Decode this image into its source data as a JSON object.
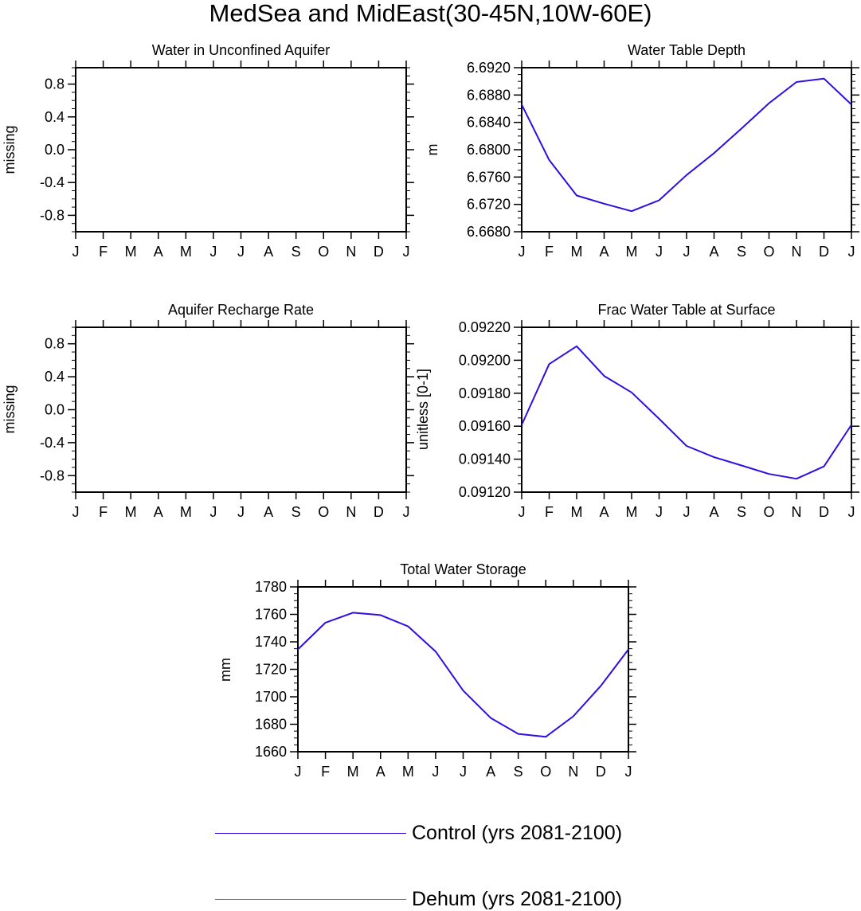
{
  "figure": {
    "title": "MedSea and MidEast(30-45N,10W-60E)"
  },
  "chart_data": [
    {
      "type": "line",
      "title": "Water in Unconfined Aquifer",
      "ylabel": "missing",
      "xlabel": "",
      "categories": [
        "J",
        "F",
        "M",
        "A",
        "M",
        "J",
        "J",
        "A",
        "S",
        "O",
        "N",
        "D",
        "J"
      ],
      "ylim": [
        -1.0,
        1.0
      ],
      "yticks": [
        -0.8,
        -0.4,
        0.0,
        0.4,
        0.8
      ],
      "ytick_labels": [
        "-0.8",
        "-0.4",
        "0.0",
        "0.4",
        "0.8"
      ],
      "minor_step": 0.1,
      "series": []
    },
    {
      "type": "line",
      "title": "Water Table Depth",
      "ylabel": "m",
      "xlabel": "",
      "categories": [
        "J",
        "F",
        "M",
        "A",
        "M",
        "J",
        "J",
        "A",
        "S",
        "O",
        "N",
        "D",
        "J"
      ],
      "ylim": [
        6.668,
        6.692
      ],
      "yticks": [
        6.668,
        6.672,
        6.676,
        6.68,
        6.684,
        6.688,
        6.692
      ],
      "ytick_labels": [
        "6.6680",
        "6.6720",
        "6.6760",
        "6.6800",
        "6.6840",
        "6.6880",
        "6.6920"
      ],
      "minor_step": 0.001,
      "series": [
        {
          "color": "#2d0fdf",
          "values": [
            6.6866,
            6.6785,
            6.6733,
            6.6721,
            6.671,
            6.6726,
            6.6763,
            6.6795,
            6.6831,
            6.6868,
            6.6899,
            6.6904,
            6.6866
          ]
        }
      ]
    },
    {
      "type": "line",
      "title": "Aquifer Recharge Rate",
      "ylabel": "missing",
      "xlabel": "",
      "categories": [
        "J",
        "F",
        "M",
        "A",
        "M",
        "J",
        "J",
        "A",
        "S",
        "O",
        "N",
        "D",
        "J"
      ],
      "ylim": [
        -1.0,
        1.0
      ],
      "yticks": [
        -0.8,
        -0.4,
        0.0,
        0.4,
        0.8
      ],
      "ytick_labels": [
        "-0.8",
        "-0.4",
        "0.0",
        "0.4",
        "0.8"
      ],
      "minor_step": 0.1,
      "series": []
    },
    {
      "type": "line",
      "title": "Frac Water Table at Surface",
      "ylabel": "unitless [0-1]",
      "xlabel": "",
      "categories": [
        "J",
        "F",
        "M",
        "A",
        "M",
        "J",
        "J",
        "A",
        "S",
        "O",
        "N",
        "D",
        "J"
      ],
      "ylim": [
        0.0912,
        0.0922
      ],
      "yticks": [
        0.0912,
        0.0914,
        0.0916,
        0.0918,
        0.092,
        0.0922
      ],
      "ytick_labels": [
        "0.09120",
        "0.09140",
        "0.09160",
        "0.09180",
        "0.09200",
        "0.09220"
      ],
      "minor_step": 5e-05,
      "series": [
        {
          "color": "#2d0fdf",
          "values": [
            0.091608,
            0.091977,
            0.092085,
            0.091905,
            0.091805,
            0.091645,
            0.09148,
            0.091412,
            0.091362,
            0.09131,
            0.091281,
            0.091356,
            0.091608
          ]
        }
      ]
    },
    {
      "type": "line",
      "title": "Total Water Storage",
      "ylabel": "mm",
      "xlabel": "",
      "categories": [
        "J",
        "F",
        "M",
        "A",
        "M",
        "J",
        "J",
        "A",
        "S",
        "O",
        "N",
        "D",
        "J"
      ],
      "ylim": [
        1660,
        1780
      ],
      "yticks": [
        1660,
        1680,
        1700,
        1720,
        1740,
        1760,
        1780
      ],
      "ytick_labels": [
        "1660",
        "1680",
        "1700",
        "1720",
        "1740",
        "1760",
        "1780"
      ],
      "minor_step": 5,
      "series": [
        {
          "color": "#2d0fdf",
          "values": [
            1734.5,
            1754.0,
            1761.2,
            1759.5,
            1751.3,
            1733.0,
            1704.5,
            1684.6,
            1673.0,
            1670.9,
            1685.8,
            1708.0,
            1734.5
          ]
        }
      ]
    }
  ],
  "legend": {
    "items": [
      {
        "label": "Control (yrs 2081-2100)",
        "color": "#2d0fdf"
      },
      {
        "label": "Dehum (yrs 2081-2100)",
        "color": "#ff3b2f"
      }
    ]
  }
}
